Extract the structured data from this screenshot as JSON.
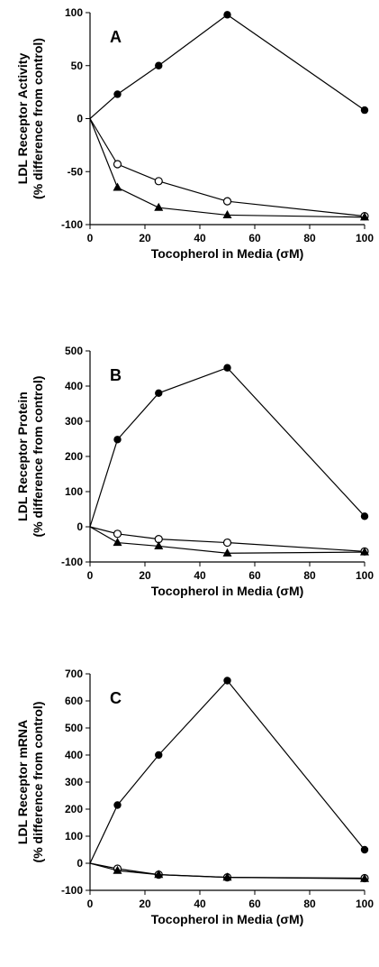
{
  "chart_data": [
    {
      "type": "line",
      "panel_label": "A",
      "ylabel_lines": [
        "LDL Receptor Activity",
        "(% difference from control)"
      ],
      "xlabel": "Tocopherol in Media (σM)",
      "xlim": [
        0,
        100
      ],
      "ylim": [
        -100,
        100
      ],
      "x_ticks": [
        0,
        20,
        40,
        60,
        80,
        100
      ],
      "y_ticks": [
        -100,
        -50,
        0,
        50,
        100
      ],
      "x": [
        0,
        10,
        25,
        50,
        100
      ],
      "series": [
        {
          "marker": "filled-circle",
          "values": [
            0,
            23,
            50,
            98,
            8
          ]
        },
        {
          "marker": "open-circle",
          "values": [
            0,
            -43,
            -59,
            -78,
            -92
          ]
        },
        {
          "marker": "filled-triangle",
          "values": [
            0,
            -65,
            -84,
            -91,
            -93
          ]
        }
      ]
    },
    {
      "type": "line",
      "panel_label": "B",
      "ylabel_lines": [
        "LDL Receptor Protein",
        "(% difference from control)"
      ],
      "xlabel": "Tocopherol in Media (σM)",
      "xlim": [
        0,
        100
      ],
      "ylim": [
        -100,
        500
      ],
      "x_ticks": [
        0,
        20,
        40,
        60,
        80,
        100
      ],
      "y_ticks": [
        -100,
        0,
        100,
        200,
        300,
        400,
        500
      ],
      "x": [
        0,
        10,
        25,
        50,
        100
      ],
      "series": [
        {
          "marker": "filled-circle",
          "values": [
            0,
            248,
            380,
            452,
            30
          ]
        },
        {
          "marker": "open-circle",
          "values": [
            0,
            -20,
            -35,
            -45,
            -70
          ]
        },
        {
          "marker": "filled-triangle",
          "values": [
            0,
            -45,
            -55,
            -75,
            -72
          ]
        }
      ]
    },
    {
      "type": "line",
      "panel_label": "C",
      "ylabel_lines": [
        "LDL Receptor mRNA",
        "(% difference from control)"
      ],
      "xlabel": "Tocopherol in Media (σM)",
      "xlim": [
        0,
        100
      ],
      "ylim": [
        -100,
        700
      ],
      "x_ticks": [
        0,
        20,
        40,
        60,
        80,
        100
      ],
      "y_ticks": [
        -100,
        0,
        100,
        200,
        300,
        400,
        500,
        600,
        700
      ],
      "x": [
        0,
        10,
        25,
        50,
        100
      ],
      "series": [
        {
          "marker": "filled-circle",
          "values": [
            0,
            215,
            400,
            675,
            50
          ]
        },
        {
          "marker": "open-circle",
          "values": [
            0,
            -20,
            -42,
            -52,
            -55
          ]
        },
        {
          "marker": "filled-triangle",
          "values": [
            0,
            -27,
            -42,
            -52,
            -57
          ]
        }
      ]
    }
  ]
}
